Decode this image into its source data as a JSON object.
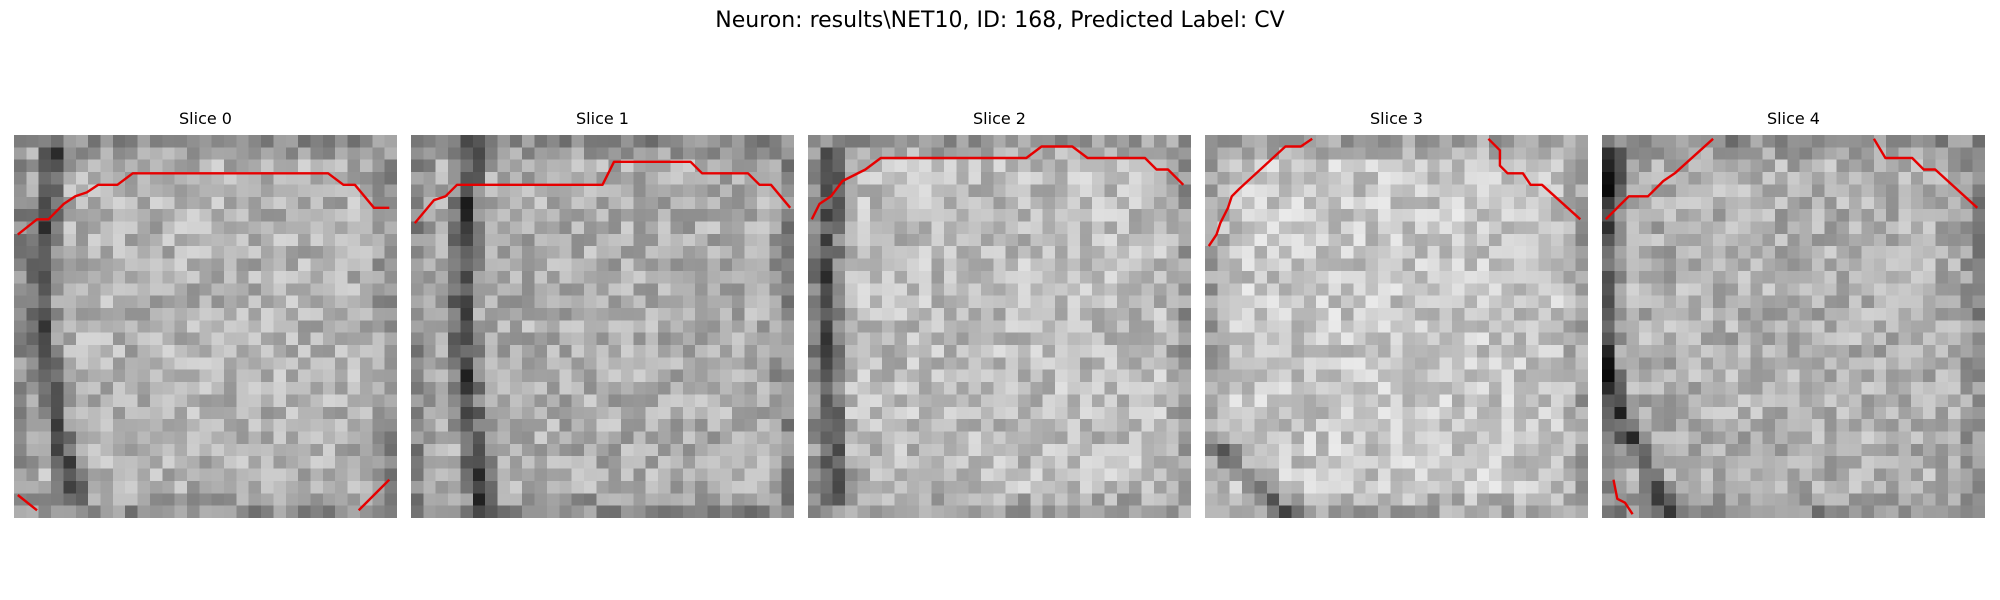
{
  "figure": {
    "title": "Neuron: results\\NET10, ID: 168, Predicted Label: CV"
  },
  "colors": {
    "contour": "#e60000",
    "background": "#ffffff"
  },
  "panels": [
    {
      "title": "Slice 0",
      "seed": 11,
      "dark_band": {
        "from": [
          0.11,
          0.05
        ],
        "to": [
          0.16,
          0.95
        ],
        "curve": -0.06
      },
      "brightness": 0.7,
      "contours": [
        [
          [
            0.01,
            0.26
          ],
          [
            0.06,
            0.22
          ],
          [
            0.09,
            0.22
          ],
          [
            0.13,
            0.18
          ],
          [
            0.16,
            0.16
          ],
          [
            0.19,
            0.15
          ],
          [
            0.22,
            0.13
          ],
          [
            0.27,
            0.13
          ],
          [
            0.31,
            0.1
          ],
          [
            0.82,
            0.1
          ],
          [
            0.86,
            0.13
          ],
          [
            0.89,
            0.13
          ],
          [
            0.94,
            0.19
          ],
          [
            0.98,
            0.19
          ]
        ],
        [
          [
            0.01,
            0.94
          ],
          [
            0.06,
            0.98
          ]
        ],
        [
          [
            0.9,
            0.98
          ],
          [
            0.98,
            0.9
          ]
        ]
      ]
    },
    {
      "title": "Slice 1",
      "seed": 23,
      "dark_band": {
        "from": [
          0.16,
          0.03
        ],
        "to": [
          0.19,
          0.97
        ],
        "curve": -0.04
      },
      "brightness": 0.68,
      "contours": [
        [
          [
            0.01,
            0.23
          ],
          [
            0.06,
            0.17
          ],
          [
            0.09,
            0.16
          ],
          [
            0.12,
            0.13
          ],
          [
            0.5,
            0.13
          ],
          [
            0.53,
            0.07
          ],
          [
            0.73,
            0.07
          ],
          [
            0.76,
            0.1
          ],
          [
            0.88,
            0.1
          ],
          [
            0.91,
            0.13
          ],
          [
            0.94,
            0.13
          ],
          [
            0.99,
            0.19
          ]
        ]
      ]
    },
    {
      "title": "Slice 2",
      "seed": 37,
      "dark_band": {
        "from": [
          0.07,
          0.05
        ],
        "to": [
          0.08,
          0.95
        ],
        "curve": -0.02
      },
      "brightness": 0.74,
      "contours": [
        [
          [
            0.01,
            0.22
          ],
          [
            0.03,
            0.18
          ],
          [
            0.06,
            0.16
          ],
          [
            0.09,
            0.12
          ],
          [
            0.15,
            0.09
          ],
          [
            0.19,
            0.06
          ],
          [
            0.57,
            0.06
          ],
          [
            0.61,
            0.03
          ],
          [
            0.69,
            0.03
          ],
          [
            0.73,
            0.06
          ],
          [
            0.88,
            0.06
          ],
          [
            0.91,
            0.09
          ],
          [
            0.94,
            0.09
          ],
          [
            0.98,
            0.13
          ]
        ]
      ]
    },
    {
      "title": "Slice 3",
      "seed": 53,
      "dark_band": {
        "from": [
          0.06,
          0.85
        ],
        "to": [
          0.22,
          0.99
        ],
        "curve": 0.0
      },
      "brightness": 0.78,
      "contours": [
        [
          [
            0.01,
            0.29
          ],
          [
            0.03,
            0.26
          ],
          [
            0.04,
            0.23
          ],
          [
            0.06,
            0.19
          ],
          [
            0.07,
            0.16
          ],
          [
            0.09,
            0.14
          ],
          [
            0.21,
            0.03
          ],
          [
            0.25,
            0.03
          ],
          [
            0.28,
            0.01
          ]
        ],
        [
          [
            0.74,
            0.01
          ],
          [
            0.77,
            0.04
          ],
          [
            0.77,
            0.08
          ],
          [
            0.79,
            0.1
          ],
          [
            0.83,
            0.1
          ],
          [
            0.85,
            0.13
          ],
          [
            0.88,
            0.13
          ],
          [
            0.98,
            0.22
          ]
        ]
      ]
    },
    {
      "title": "Slice 4",
      "seed": 71,
      "dark_band": {
        "from": [
          0.04,
          0.05
        ],
        "to": [
          0.18,
          0.98
        ],
        "curve": -0.12
      },
      "brightness": 0.69,
      "contours": [
        [
          [
            0.01,
            0.22
          ],
          [
            0.05,
            0.18
          ],
          [
            0.07,
            0.16
          ],
          [
            0.12,
            0.16
          ],
          [
            0.16,
            0.12
          ],
          [
            0.19,
            0.1
          ],
          [
            0.29,
            0.01
          ]
        ],
        [
          [
            0.71,
            0.01
          ],
          [
            0.74,
            0.06
          ],
          [
            0.81,
            0.06
          ],
          [
            0.84,
            0.09
          ],
          [
            0.87,
            0.09
          ],
          [
            0.98,
            0.19
          ]
        ],
        [
          [
            0.03,
            0.9
          ],
          [
            0.04,
            0.95
          ],
          [
            0.06,
            0.96
          ],
          [
            0.08,
            0.99
          ]
        ]
      ]
    }
  ]
}
